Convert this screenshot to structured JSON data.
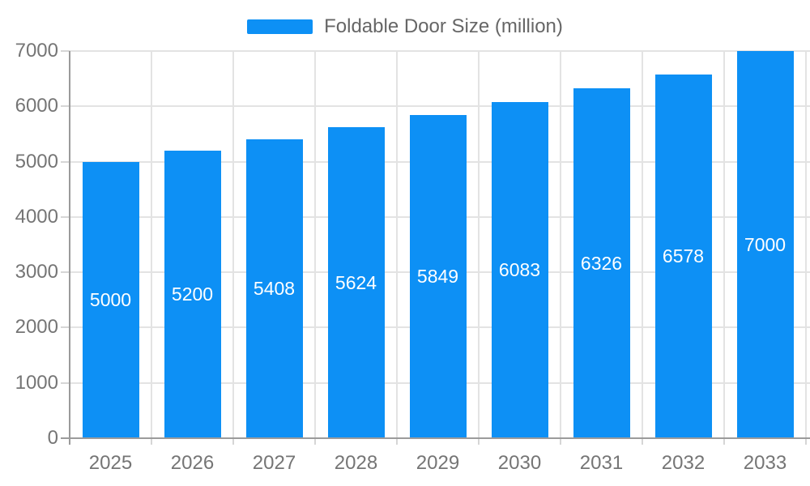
{
  "chart_data": {
    "type": "bar",
    "title": "",
    "legend": {
      "label": "Foldable Door Size (million)",
      "position": "top-center"
    },
    "categories": [
      "2025",
      "2026",
      "2027",
      "2028",
      "2029",
      "2030",
      "2031",
      "2032",
      "2033"
    ],
    "series": [
      {
        "name": "Foldable Door Size (million)",
        "values": [
          5000,
          5200,
          5408,
          5624,
          5849,
          6083,
          6326,
          6578,
          7000
        ]
      }
    ],
    "xlabel": "",
    "ylabel": "",
    "ylim": [
      0,
      7000
    ],
    "yticks": [
      0,
      1000,
      2000,
      3000,
      4000,
      5000,
      6000,
      7000
    ],
    "grid": true,
    "value_labels": {
      "position": "inside-center",
      "color": "#FFFFFF"
    },
    "colors": {
      "bar": "#0D90F5",
      "grid": "#E3E3E3",
      "tick": "#D6D6D6",
      "axis": "#9B9B9B",
      "axis_label_text": "#757575",
      "legend_text": "#666666",
      "background": "#FFFFFF"
    }
  }
}
